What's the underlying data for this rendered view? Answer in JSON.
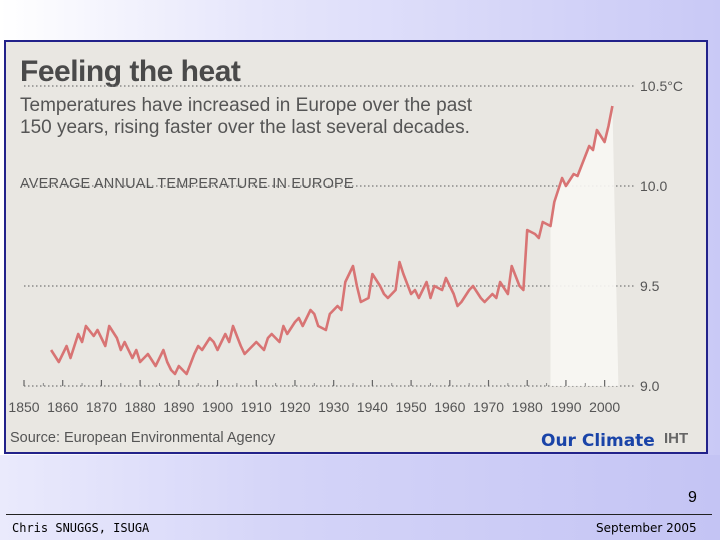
{
  "slide": {
    "overlay_label": "Our Climate",
    "page_number": "9",
    "footer_left": "Chris SNUGGS, ISUGA",
    "footer_right": "September 2005"
  },
  "chart_data": {
    "type": "line",
    "title": "Feeling the heat",
    "subtitle": "Temperatures have increased in Europe over the past 150 years, rising faster over the last several decades.",
    "label": "AVERAGE ANNUAL TEMPERATURE IN EUROPE",
    "source": "Source: European Environmental Agency",
    "credit": "IHT",
    "xlim": [
      1850,
      2005
    ],
    "ylim": [
      9.0,
      10.5
    ],
    "x_ticks": [
      1850,
      1860,
      1870,
      1880,
      1890,
      1900,
      1910,
      1920,
      1930,
      1940,
      1950,
      1960,
      1970,
      1980,
      1990,
      2000
    ],
    "y_ticks": [
      {
        "value": 10.5,
        "label": "10.5°C"
      },
      {
        "value": 10.0,
        "label": "10.0"
      },
      {
        "value": 9.5,
        "label": "9.5"
      },
      {
        "value": 9.0,
        "label": "9.0"
      }
    ],
    "series": [
      {
        "name": "Average annual temperature in Europe",
        "color": "#d87474",
        "x": [
          1857,
          1859,
          1861,
          1862,
          1864,
          1865,
          1866,
          1868,
          1869,
          1871,
          1872,
          1874,
          1875,
          1876,
          1878,
          1879,
          1880,
          1882,
          1884,
          1885,
          1886,
          1887,
          1888,
          1889,
          1890,
          1892,
          1894,
          1895,
          1896,
          1898,
          1899,
          1900,
          1902,
          1903,
          1904,
          1906,
          1907,
          1909,
          1910,
          1912,
          1913,
          1914,
          1916,
          1917,
          1918,
          1920,
          1921,
          1922,
          1924,
          1925,
          1926,
          1928,
          1929,
          1931,
          1932,
          1933,
          1935,
          1936,
          1937,
          1939,
          1940,
          1942,
          1943,
          1944,
          1946,
          1947,
          1948,
          1950,
          1951,
          1952,
          1954,
          1955,
          1956,
          1958,
          1959,
          1961,
          1962,
          1963,
          1965,
          1966,
          1968,
          1969,
          1971,
          1972,
          1973,
          1975,
          1976,
          1978,
          1979,
          1980,
          1982,
          1983,
          1984,
          1986,
          1987,
          1989,
          1990,
          1992,
          1993,
          1994,
          1996,
          1997,
          1998,
          2000,
          2001,
          2002
        ],
        "values": [
          9.18,
          9.12,
          9.2,
          9.14,
          9.26,
          9.22,
          9.3,
          9.25,
          9.28,
          9.2,
          9.3,
          9.24,
          9.18,
          9.22,
          9.14,
          9.18,
          9.12,
          9.16,
          9.1,
          9.14,
          9.18,
          9.12,
          9.08,
          9.06,
          9.1,
          9.06,
          9.16,
          9.2,
          9.18,
          9.24,
          9.22,
          9.18,
          9.26,
          9.22,
          9.3,
          9.2,
          9.16,
          9.2,
          9.22,
          9.18,
          9.24,
          9.26,
          9.22,
          9.3,
          9.26,
          9.32,
          9.34,
          9.3,
          9.38,
          9.36,
          9.3,
          9.28,
          9.36,
          9.4,
          9.38,
          9.52,
          9.6,
          9.5,
          9.42,
          9.44,
          9.56,
          9.5,
          9.46,
          9.44,
          9.48,
          9.62,
          9.56,
          9.46,
          9.48,
          9.44,
          9.52,
          9.44,
          9.5,
          9.48,
          9.54,
          9.46,
          9.4,
          9.42,
          9.48,
          9.5,
          9.44,
          9.42,
          9.46,
          9.44,
          9.52,
          9.46,
          9.6,
          9.5,
          9.48,
          9.78,
          9.76,
          9.74,
          9.82,
          9.8,
          9.92,
          10.04,
          10.0,
          10.06,
          10.05,
          10.1,
          10.2,
          10.18,
          10.28,
          10.22,
          10.3,
          10.4
        ]
      }
    ]
  }
}
